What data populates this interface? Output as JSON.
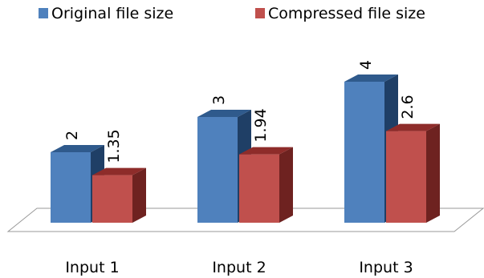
{
  "chart_data": {
    "type": "bar",
    "style": "3d-clustered-column",
    "categories": [
      "Input 1",
      "Input 2",
      "Input 3"
    ],
    "series": [
      {
        "name": "Original file size",
        "values": [
          2,
          3,
          4
        ],
        "labels": [
          "2",
          "3",
          "4"
        ],
        "color": "#4f81bd",
        "top_color": "#2f5a8c",
        "side_color": "#1f3f66"
      },
      {
        "name": "Compressed file size",
        "values": [
          1.35,
          1.94,
          2.6
        ],
        "labels": [
          "1.35",
          "1.94",
          "2.6"
        ],
        "color": "#c0504d",
        "top_color": "#8e2c2a",
        "side_color": "#6e2220"
      }
    ],
    "title": "",
    "xlabel": "",
    "ylabel": "",
    "ylim": [
      0,
      4
    ],
    "grid": false,
    "legend_position": "top"
  }
}
